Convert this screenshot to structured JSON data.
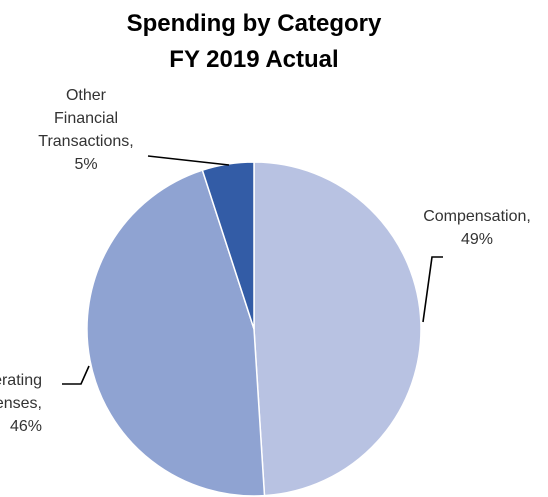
{
  "chart_data": {
    "type": "pie",
    "title": "Spending by Category",
    "subtitle": "FY 2019 Actual",
    "slices": [
      {
        "name": "Compensation",
        "value": 49,
        "label_lines": [
          "Compensation,",
          "49%"
        ],
        "color": "#b8c2e2"
      },
      {
        "name": "Operating Expenses",
        "value": 46,
        "label_lines": [
          "Operating",
          "Expenses,",
          "46%"
        ],
        "color": "#8fa3d2"
      },
      {
        "name": "Other Financial Transactions",
        "value": 5,
        "label_lines": [
          "Other",
          "Financial",
          "Transactions,",
          "5%"
        ],
        "color": "#335ca6"
      }
    ],
    "legend": "none",
    "start_angle_deg": 0,
    "direction": "clockwise"
  }
}
